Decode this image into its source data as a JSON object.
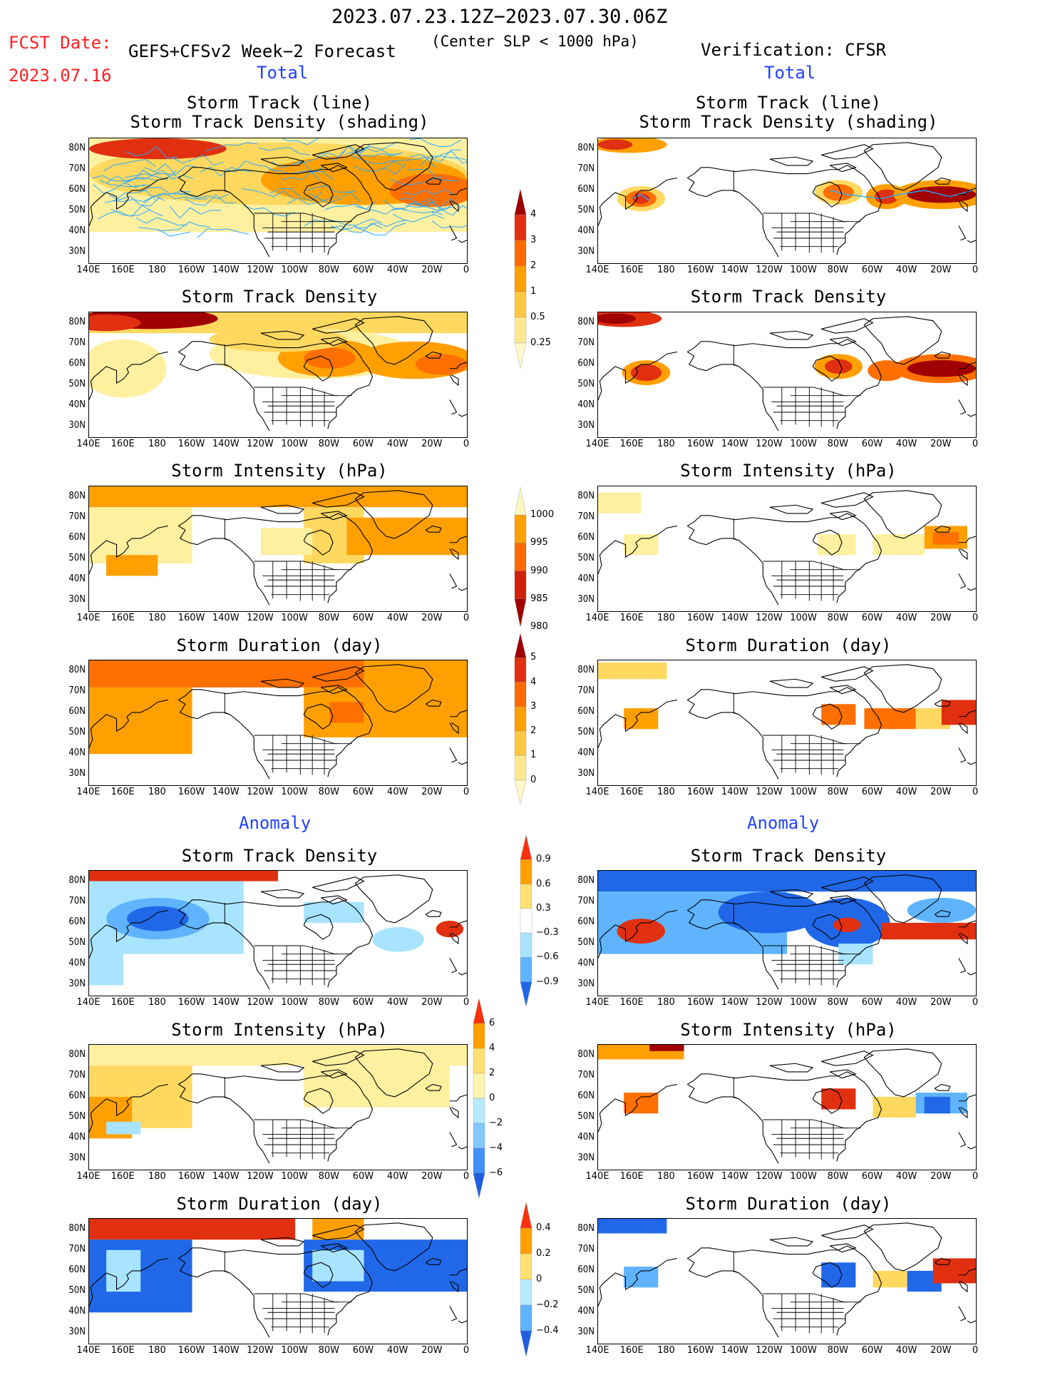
{
  "header": {
    "date_range": "2023.07.23.12Z−2023.07.30.06Z",
    "fcst_label": "FCST Date:",
    "fcst_date": "2023.07.16",
    "model": "GEFS+CFSv2 Week−2 Forecast",
    "criterion": "(Center SLP < 1000 hPa)",
    "verification": "Verification: CFSR"
  },
  "sections": {
    "total_left": "Total",
    "total_right": "Total",
    "anomaly_left": "Anomaly",
    "anomaly_right": "Anomaly"
  },
  "panel_titles": {
    "track_line": "Storm Track (line)",
    "track_density_shading": "Storm Track Density (shading)",
    "track_density": "Storm Track Density",
    "intensity": "Storm Intensity (hPa)",
    "duration": "Storm Duration (day)"
  },
  "axes": {
    "lat_labels": [
      "80N",
      "70N",
      "60N",
      "50N",
      "40N",
      "30N"
    ],
    "lon_labels": [
      "140E",
      "160E",
      "180",
      "160W",
      "140W",
      "120W",
      "100W",
      "80W",
      "60W",
      "40W",
      "20W",
      "0"
    ]
  },
  "colorbars": {
    "density_total": {
      "labels": [
        "4",
        "3",
        "2",
        "1",
        "0.5",
        "0.25"
      ],
      "colors": [
        "#a00000",
        "#e03010",
        "#ff6a00",
        "#ffa000",
        "#ffc840",
        "#ffe890",
        "#fff8c8"
      ]
    },
    "intensity_total": {
      "labels": [
        "1000",
        "995",
        "990",
        "985",
        "980"
      ],
      "colors": [
        "#fff6c0",
        "#ffa000",
        "#ff6a00",
        "#d02008",
        "#a00000"
      ]
    },
    "duration_total": {
      "labels": [
        "5",
        "4",
        "3",
        "2",
        "1",
        "0"
      ],
      "colors": [
        "#a00000",
        "#e03010",
        "#ff6a00",
        "#ffa000",
        "#ffc840",
        "#ffe890",
        "#fff8c8"
      ]
    },
    "density_anom": {
      "labels": [
        "0.9",
        "0.6",
        "0.3",
        "−0.3",
        "−0.6",
        "−0.9"
      ],
      "colors": [
        "#ff3010",
        "#ffa000",
        "#ffe070",
        "#ffffff",
        "#a8e4ff",
        "#60b4ff",
        "#2068e8"
      ]
    },
    "intensity_anom": {
      "labels": [
        "6",
        "4",
        "2",
        "0",
        "−2",
        "−4",
        "−6"
      ],
      "colors": [
        "#ff3010",
        "#ffa000",
        "#ffe070",
        "#fff4b0",
        "#b8eaff",
        "#80c8ff",
        "#4090ff",
        "#2060e0"
      ]
    },
    "duration_anom": {
      "labels": [
        "0.4",
        "0.2",
        "0",
        "−0.2",
        "−0.4"
      ],
      "colors": [
        "#ff3010",
        "#ffa000",
        "#ffe070",
        "#b8eaff",
        "#60b4ff",
        "#2060e0"
      ]
    }
  }
}
